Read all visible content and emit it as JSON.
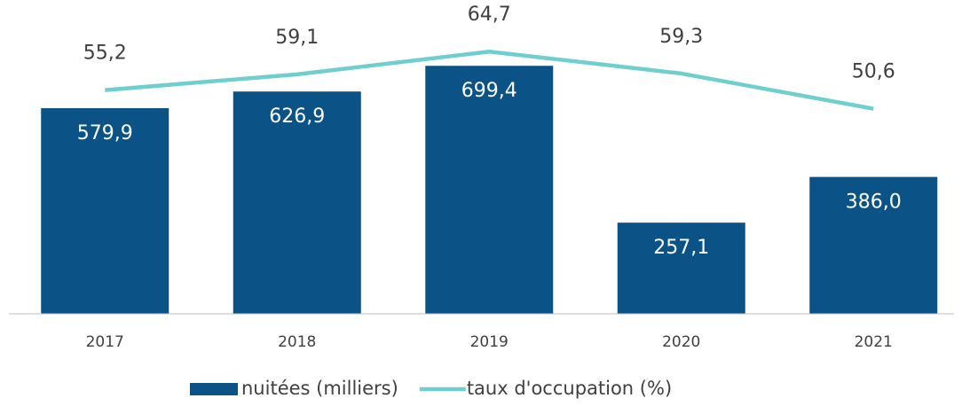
{
  "chart_data": {
    "type": "bar",
    "categories": [
      "2017",
      "2018",
      "2019",
      "2020",
      "2021"
    ],
    "series": [
      {
        "name": "nuitées (milliers)",
        "type": "bar",
        "color": "#0b5286",
        "values": [
          579.9,
          626.9,
          699.4,
          257.1,
          386.0
        ],
        "value_labels": [
          "579,9",
          "626,9",
          "699,4",
          "257,1",
          "386,0"
        ]
      },
      {
        "name": "taux d'occupation (%)",
        "type": "line",
        "axis": "y2",
        "color": "#6fcfcf",
        "values": [
          55.2,
          59.1,
          64.7,
          59.3,
          50.6
        ],
        "value_labels": [
          "55,2",
          "59,1",
          "64,7",
          "59,3",
          "50,6"
        ]
      }
    ],
    "ylim": [
      0,
      800
    ],
    "y2lim": [
      0,
      70
    ],
    "grid": false,
    "legend": "bottom"
  }
}
